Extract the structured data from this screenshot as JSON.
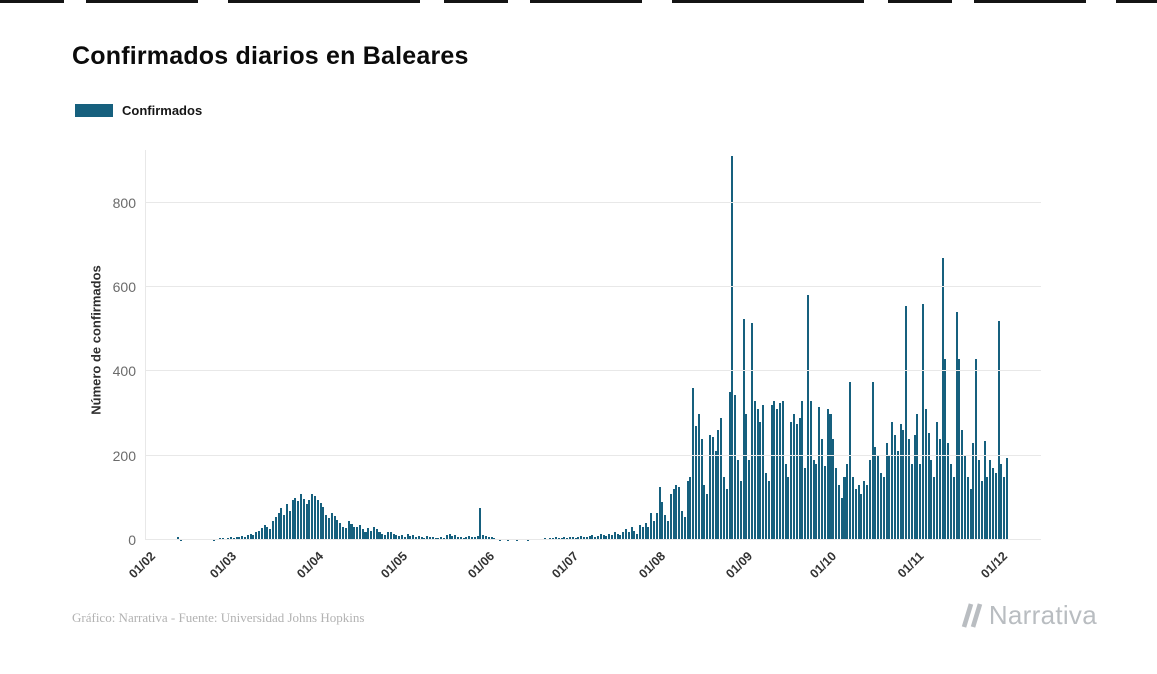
{
  "footer": {
    "credit": "Gráfico: Narrativa - Fuente: Universidad Johns Hopkins",
    "brand": "Narrativa"
  },
  "chart_data": {
    "type": "bar",
    "title": "Confirmados diarios en Baleares",
    "xlabel": "",
    "ylabel": "Número de confirmados",
    "legend_entries": [
      "Confirmados"
    ],
    "legend_position": "top-left",
    "grid": "horizontal",
    "ylim": [
      0,
      925
    ],
    "yticks": [
      0,
      200,
      400,
      600,
      800
    ],
    "colors": {
      "bar": "#16607E",
      "grid": "#E8E8E8"
    },
    "x_tick_labels": [
      "01/02",
      "01/03",
      "01/04",
      "01/05",
      "01/06",
      "01/07",
      "01/08",
      "01/09",
      "01/10",
      "01/11",
      "01/12"
    ],
    "x_tick_indices": [
      0,
      29,
      60,
      90,
      121,
      151,
      182,
      213,
      243,
      274,
      304
    ],
    "values": [
      0,
      0,
      0,
      0,
      0,
      0,
      0,
      0,
      0,
      0,
      2,
      7,
      1,
      0,
      0,
      0,
      0,
      0,
      0,
      0,
      0,
      0,
      0,
      0,
      1,
      2,
      4,
      5,
      3,
      4,
      6,
      5,
      8,
      6,
      10,
      8,
      12,
      15,
      12,
      18,
      22,
      28,
      35,
      30,
      25,
      45,
      55,
      65,
      75,
      60,
      85,
      70,
      95,
      100,
      92,
      108,
      98,
      85,
      95,
      110,
      105,
      95,
      88,
      78,
      60,
      52,
      65,
      58,
      48,
      40,
      32,
      28,
      45,
      38,
      32,
      30,
      35,
      25,
      20,
      28,
      22,
      30,
      25,
      20,
      14,
      12,
      18,
      20,
      14,
      12,
      10,
      12,
      8,
      14,
      10,
      12,
      8,
      10,
      6,
      5,
      10,
      8,
      6,
      5,
      4,
      6,
      5,
      12,
      15,
      10,
      12,
      8,
      6,
      5,
      8,
      10,
      6,
      8,
      10,
      75,
      12,
      10,
      8,
      6,
      4,
      2,
      1,
      0,
      0,
      1,
      0,
      0,
      1,
      0,
      0,
      0,
      1,
      0,
      0,
      2,
      3,
      2,
      4,
      3,
      5,
      4,
      6,
      5,
      4,
      6,
      5,
      8,
      6,
      5,
      8,
      10,
      8,
      6,
      10,
      12,
      8,
      10,
      14,
      12,
      10,
      15,
      12,
      18,
      15,
      12,
      20,
      25,
      18,
      30,
      22,
      15,
      35,
      30,
      40,
      30,
      65,
      45,
      65,
      125,
      90,
      60,
      45,
      110,
      120,
      130,
      125,
      70,
      55,
      140,
      150,
      360,
      270,
      300,
      240,
      130,
      110,
      250,
      245,
      210,
      260,
      290,
      150,
      120,
      350,
      910,
      345,
      190,
      140,
      525,
      300,
      190,
      515,
      330,
      310,
      280,
      320,
      160,
      140,
      320,
      330,
      310,
      325,
      330,
      180,
      150,
      280,
      300,
      275,
      290,
      330,
      170,
      580,
      330,
      190,
      180,
      315,
      240,
      175,
      310,
      300,
      240,
      170,
      130,
      100,
      150,
      180,
      375,
      150,
      120,
      130,
      110,
      140,
      130,
      190,
      375,
      220,
      200,
      160,
      150,
      230,
      200,
      280,
      250,
      210,
      275,
      260,
      555,
      240,
      180,
      250,
      300,
      180,
      560,
      310,
      255,
      190,
      150,
      280,
      240,
      670,
      430,
      230,
      180,
      150,
      540,
      430,
      260,
      200,
      150,
      120,
      230,
      430,
      190,
      140,
      235,
      150,
      190,
      170,
      160,
      520,
      180,
      150,
      195
    ]
  }
}
